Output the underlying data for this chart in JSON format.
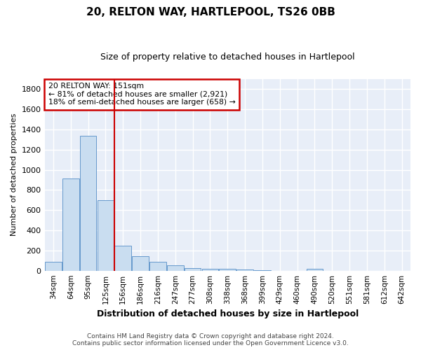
{
  "title": "20, RELTON WAY, HARTLEPOOL, TS26 0BB",
  "subtitle": "Size of property relative to detached houses in Hartlepool",
  "xlabel": "Distribution of detached houses by size in Hartlepool",
  "ylabel": "Number of detached properties",
  "footer_line1": "Contains HM Land Registry data © Crown copyright and database right 2024.",
  "footer_line2": "Contains public sector information licensed under the Open Government Licence v3.0.",
  "categories": [
    "34sqm",
    "64sqm",
    "95sqm",
    "125sqm",
    "156sqm",
    "186sqm",
    "216sqm",
    "247sqm",
    "277sqm",
    "308sqm",
    "338sqm",
    "368sqm",
    "399sqm",
    "429sqm",
    "460sqm",
    "490sqm",
    "520sqm",
    "551sqm",
    "581sqm",
    "612sqm",
    "642sqm"
  ],
  "values": [
    85,
    910,
    1340,
    700,
    245,
    140,
    85,
    55,
    28,
    22,
    18,
    12,
    5,
    0,
    0,
    22,
    0,
    0,
    0,
    0,
    0
  ],
  "bar_color": "#c9ddf0",
  "bar_edge_color": "#6699cc",
  "vline_color": "#cc0000",
  "vline_index": 4,
  "annotation_line1": "20 RELTON WAY: 151sqm",
  "annotation_line2": "← 81% of detached houses are smaller (2,921)",
  "annotation_line3": "18% of semi-detached houses are larger (658) →",
  "annotation_box_facecolor": "#ffffff",
  "annotation_box_edgecolor": "#cc0000",
  "ylim": [
    0,
    1900
  ],
  "yticks": [
    0,
    200,
    400,
    600,
    800,
    1000,
    1200,
    1400,
    1600,
    1800
  ],
  "bg_color": "#ffffff",
  "plot_bg_color": "#e8eef8",
  "grid_color": "#ffffff",
  "title_fontsize": 11,
  "subtitle_fontsize": 9,
  "ylabel_fontsize": 8,
  "xlabel_fontsize": 9,
  "tick_fontsize": 8,
  "xtick_fontsize": 7.5,
  "footer_fontsize": 6.5
}
